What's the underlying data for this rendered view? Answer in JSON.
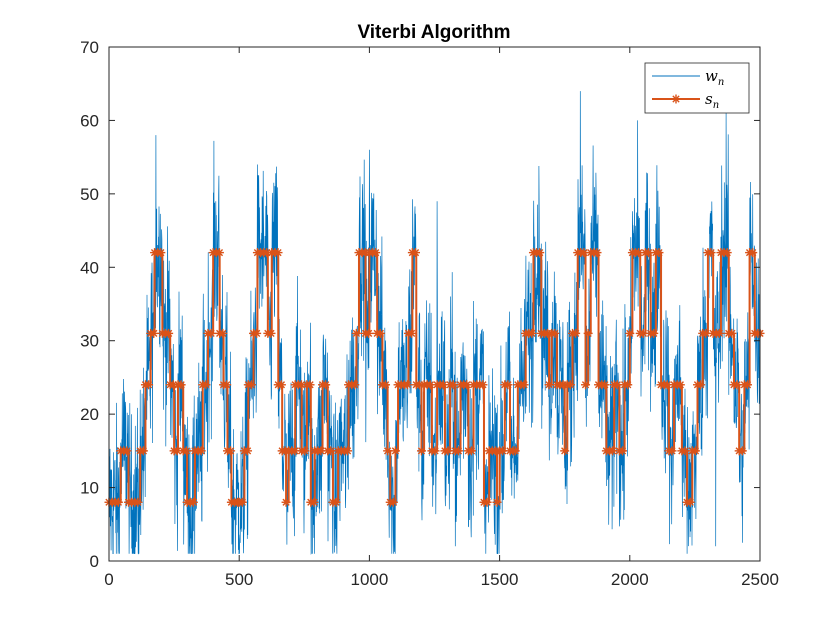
{
  "chart_data": {
    "type": "line",
    "title": "Viterbi Algorithm",
    "xlabel": "",
    "ylabel": "",
    "xlim": [
      0,
      2500
    ],
    "ylim": [
      0,
      70
    ],
    "x_ticks": [
      0,
      500,
      1000,
      1500,
      2000,
      2500
    ],
    "y_ticks": [
      0,
      10,
      20,
      30,
      40,
      50,
      60,
      70
    ],
    "x_tick_labels": [
      "0",
      "500",
      "1000",
      "1500",
      "2000",
      "2500"
    ],
    "y_tick_labels": [
      "0",
      "10",
      "20",
      "30",
      "40",
      "50",
      "60",
      "70"
    ],
    "grid": false,
    "legend_position": "top-right",
    "series": [
      {
        "name": "w",
        "subscript": "n",
        "color": "#0072BD",
        "style": "thin line",
        "noise_amplitude": 6,
        "notable_peaks": [
          {
            "x": 180,
            "y": 58
          },
          {
            "x": 410,
            "y": 49
          },
          {
            "x": 570,
            "y": 54
          },
          {
            "x": 1000,
            "y": 56
          },
          {
            "x": 1260,
            "y": 49
          },
          {
            "x": 1810,
            "y": 64
          },
          {
            "x": 2030,
            "y": 60
          },
          {
            "x": 2370,
            "y": 61
          },
          {
            "x": 2330,
            "y": 2
          },
          {
            "x": 310,
            "y": 2
          },
          {
            "x": 1330,
            "y": 2
          }
        ]
      },
      {
        "name": "s",
        "subscript": "n",
        "color": "#D95319",
        "style": "line with asterisk markers",
        "state_levels": [
          8,
          15,
          24,
          31,
          42
        ],
        "segments": [
          [
            0,
            8
          ],
          [
            45,
            15
          ],
          [
            75,
            8
          ],
          [
            120,
            15
          ],
          [
            140,
            24
          ],
          [
            160,
            31
          ],
          [
            175,
            42
          ],
          [
            205,
            31
          ],
          [
            235,
            24
          ],
          [
            250,
            15
          ],
          [
            265,
            24
          ],
          [
            285,
            15
          ],
          [
            300,
            8
          ],
          [
            330,
            15
          ],
          [
            360,
            24
          ],
          [
            380,
            31
          ],
          [
            400,
            42
          ],
          [
            425,
            31
          ],
          [
            440,
            24
          ],
          [
            455,
            15
          ],
          [
            470,
            8
          ],
          [
            500,
            8
          ],
          [
            520,
            15
          ],
          [
            535,
            24
          ],
          [
            555,
            31
          ],
          [
            570,
            42
          ],
          [
            610,
            31
          ],
          [
            625,
            42
          ],
          [
            650,
            24
          ],
          [
            665,
            15
          ],
          [
            680,
            8
          ],
          [
            690,
            15
          ],
          [
            715,
            24
          ],
          [
            740,
            15
          ],
          [
            760,
            24
          ],
          [
            775,
            8
          ],
          [
            790,
            15
          ],
          [
            820,
            24
          ],
          [
            840,
            15
          ],
          [
            860,
            8
          ],
          [
            880,
            15
          ],
          [
            920,
            24
          ],
          [
            950,
            31
          ],
          [
            960,
            42
          ],
          [
            985,
            31
          ],
          [
            1000,
            42
          ],
          [
            1030,
            31
          ],
          [
            1050,
            24
          ],
          [
            1070,
            15
          ],
          [
            1080,
            8
          ],
          [
            1100,
            15
          ],
          [
            1110,
            24
          ],
          [
            1150,
            31
          ],
          [
            1165,
            42
          ],
          [
            1180,
            24
          ],
          [
            1200,
            15
          ],
          [
            1210,
            24
          ],
          [
            1240,
            15
          ],
          [
            1260,
            24
          ],
          [
            1290,
            15
          ],
          [
            1310,
            24
          ],
          [
            1330,
            15
          ],
          [
            1350,
            24
          ],
          [
            1380,
            15
          ],
          [
            1400,
            24
          ],
          [
            1440,
            8
          ],
          [
            1460,
            15
          ],
          [
            1490,
            8
          ],
          [
            1500,
            15
          ],
          [
            1520,
            24
          ],
          [
            1540,
            15
          ],
          [
            1560,
            15
          ],
          [
            1570,
            24
          ],
          [
            1600,
            31
          ],
          [
            1630,
            42
          ],
          [
            1660,
            31
          ],
          [
            1690,
            24
          ],
          [
            1700,
            31
          ],
          [
            1720,
            24
          ],
          [
            1750,
            15
          ],
          [
            1760,
            24
          ],
          [
            1780,
            31
          ],
          [
            1800,
            42
          ],
          [
            1830,
            24
          ],
          [
            1840,
            31
          ],
          [
            1850,
            42
          ],
          [
            1880,
            24
          ],
          [
            1910,
            15
          ],
          [
            1940,
            24
          ],
          [
            1960,
            15
          ],
          [
            1980,
            24
          ],
          [
            2000,
            31
          ],
          [
            2010,
            42
          ],
          [
            2040,
            31
          ],
          [
            2060,
            42
          ],
          [
            2080,
            31
          ],
          [
            2100,
            42
          ],
          [
            2120,
            24
          ],
          [
            2150,
            15
          ],
          [
            2170,
            24
          ],
          [
            2200,
            15
          ],
          [
            2220,
            8
          ],
          [
            2240,
            15
          ],
          [
            2260,
            24
          ],
          [
            2280,
            31
          ],
          [
            2300,
            42
          ],
          [
            2320,
            31
          ],
          [
            2350,
            42
          ],
          [
            2380,
            31
          ],
          [
            2400,
            24
          ],
          [
            2420,
            15
          ],
          [
            2440,
            24
          ],
          [
            2460,
            42
          ],
          [
            2480,
            31
          ],
          [
            2500,
            31
          ]
        ]
      }
    ]
  }
}
